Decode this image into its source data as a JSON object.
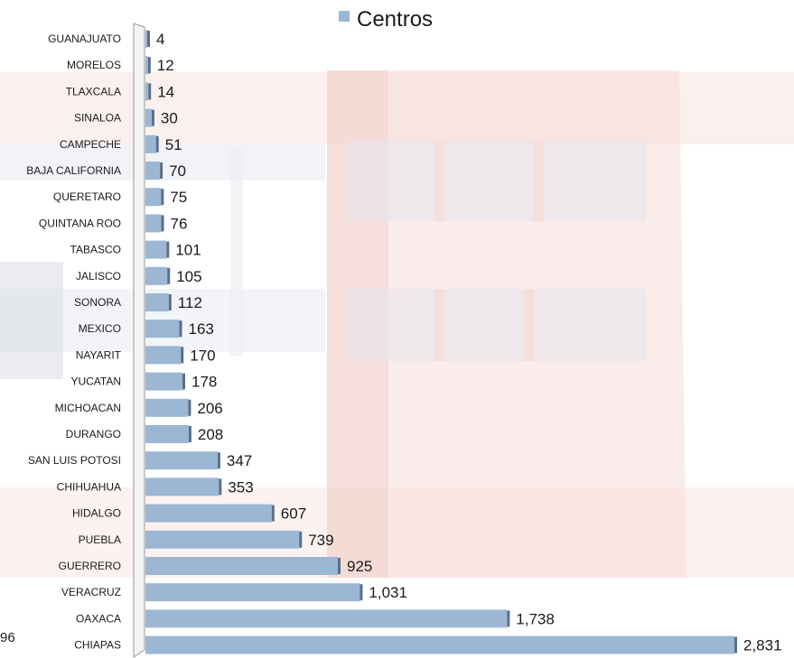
{
  "chart_data": {
    "type": "bar",
    "orientation": "horizontal",
    "title": "",
    "xlabel": "",
    "ylabel": "",
    "legend": {
      "position": "top",
      "entries": [
        "Centros"
      ]
    },
    "series": [
      {
        "name": "Centros",
        "color": "#9bb7d4",
        "values": [
          4,
          12,
          14,
          30,
          51,
          70,
          75,
          76,
          101,
          105,
          112,
          163,
          170,
          178,
          206,
          208,
          347,
          353,
          607,
          739,
          925,
          1031,
          1738,
          2831
        ]
      }
    ],
    "categories": [
      "GUANAJUATO",
      "MORELOS",
      "TLAXCALA",
      "SINALOA",
      "CAMPECHE",
      "BAJA CALIFORNIA",
      "QUERETARO",
      "QUINTANA ROO",
      "TABASCO",
      "JALISCO",
      "SONORA",
      "MEXICO",
      "NAYARIT",
      "YUCATAN",
      "MICHOACAN",
      "DURANGO",
      "SAN LUIS POTOSI",
      "CHIHUAHUA",
      "HIDALGO",
      "PUEBLA",
      "GUERRERO",
      "VERACRUZ",
      "OAXACA",
      "CHIAPAS"
    ],
    "value_labels": [
      "4",
      "12",
      "14",
      "30",
      "51",
      "70",
      "75",
      "76",
      "101",
      "105",
      "112",
      "163",
      "170",
      "178",
      "206",
      "208",
      "347",
      "353",
      "607",
      "739",
      "925",
      "1,031",
      "1,738",
      "2,831"
    ],
    "xlim": [
      0,
      2831
    ],
    "grid": false,
    "stray_label": "96"
  }
}
